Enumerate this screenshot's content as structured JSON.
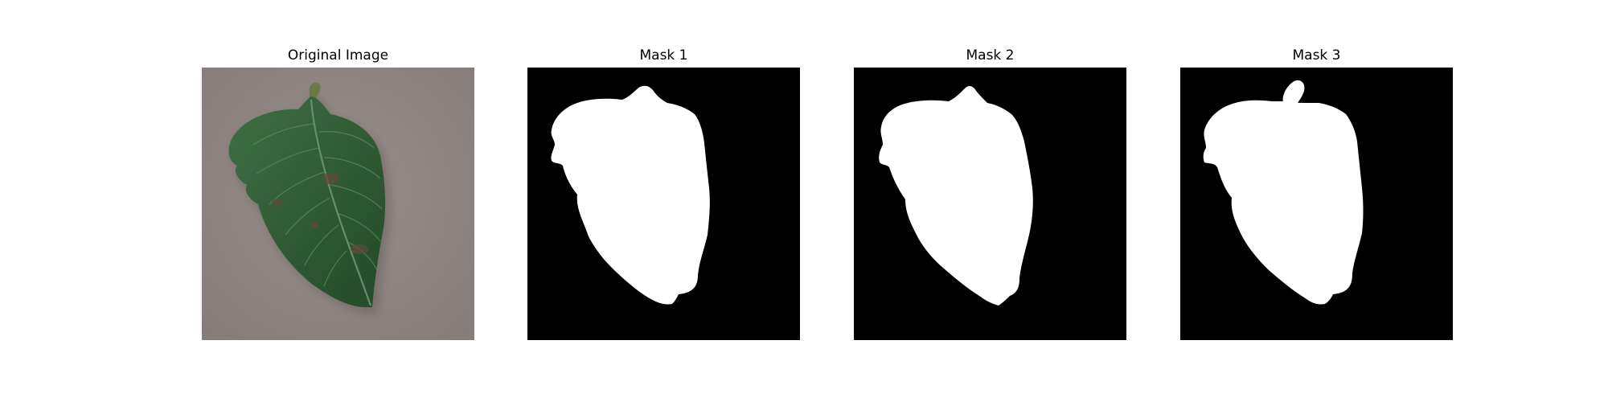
{
  "panels": [
    {
      "title": "Original Image"
    },
    {
      "title": "Mask 1"
    },
    {
      "title": "Mask 2"
    },
    {
      "title": "Mask 3"
    }
  ],
  "colors": {
    "mask_background": "#000000",
    "mask_foreground": "#ffffff",
    "ground": "#8f8583",
    "leaf": "#2f5a34"
  }
}
